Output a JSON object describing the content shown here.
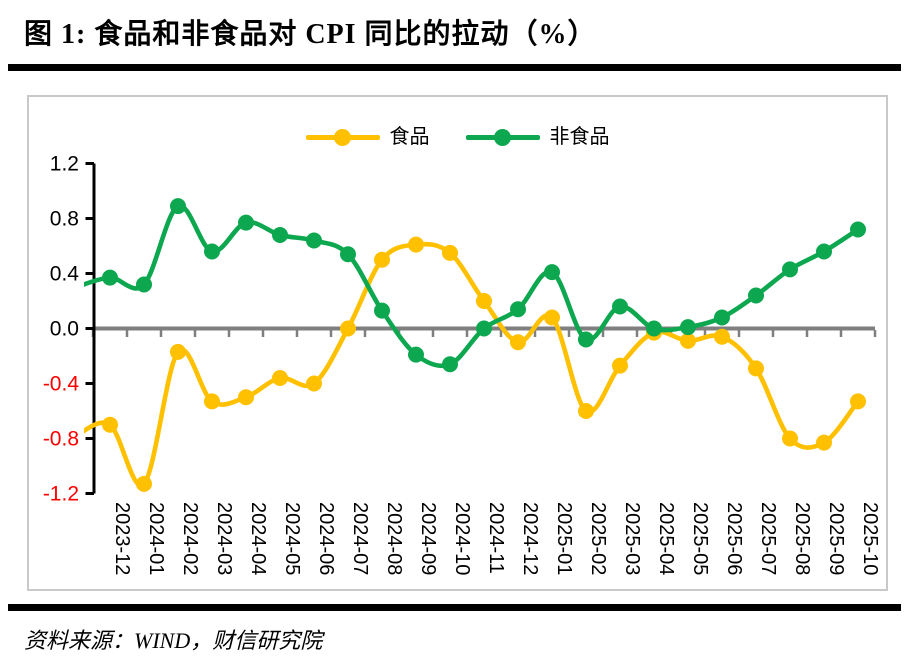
{
  "figure": {
    "title": "图 1:  食品和非食品对 CPI 同比的拉动（%）",
    "source_note": "资料来源：WIND，财信研究院"
  },
  "chart_data": {
    "type": "line",
    "smoothed": true,
    "title": "食品和非食品对 CPI 同比的拉动（%）",
    "xlabel": "",
    "ylabel": "",
    "ylim": [
      -1.2,
      1.2
    ],
    "y_ticks": [
      1.2,
      0.8,
      0.4,
      0.0,
      -0.4,
      -0.8,
      -1.2
    ],
    "grid": false,
    "legend_position": "top-center",
    "categories": [
      "2023-12",
      "2024-01",
      "2024-02",
      "2024-03",
      "2024-04",
      "2024-05",
      "2024-06",
      "2024-07",
      "2024-08",
      "2024-09",
      "2024-10",
      "2024-11",
      "2024-12",
      "2025-01",
      "2025-02",
      "2025-03",
      "2025-04",
      "2025-05",
      "2025-06",
      "2025-07",
      "2025-08",
      "2025-09",
      "2025-10"
    ],
    "series": [
      {
        "name": "食品",
        "color": "#FFC000",
        "values": [
          -0.7,
          -1.13,
          -0.17,
          -0.53,
          -0.5,
          -0.36,
          -0.4,
          0.0,
          0.5,
          0.61,
          0.55,
          0.2,
          -0.1,
          0.08,
          -0.6,
          -0.27,
          -0.03,
          -0.09,
          -0.06,
          -0.29,
          -0.8,
          -0.83,
          -0.53
        ],
        "prev_point_clipped_at_axis": -0.78
      },
      {
        "name": "非食品",
        "color": "#0DA750",
        "values": [
          0.37,
          0.32,
          0.89,
          0.56,
          0.77,
          0.68,
          0.64,
          0.54,
          0.13,
          -0.19,
          -0.26,
          0.0,
          0.14,
          0.41,
          -0.08,
          0.16,
          0.0,
          0.01,
          0.08,
          0.24,
          0.43,
          0.56,
          0.72
        ],
        "prev_point_clipped_at_axis": 0.3
      }
    ],
    "axis_colors": {
      "tick_label": "#000000",
      "negative_tick_label": "#FF0000",
      "zero_line": "#7F7F7F",
      "axis_line": "#000000"
    }
  }
}
